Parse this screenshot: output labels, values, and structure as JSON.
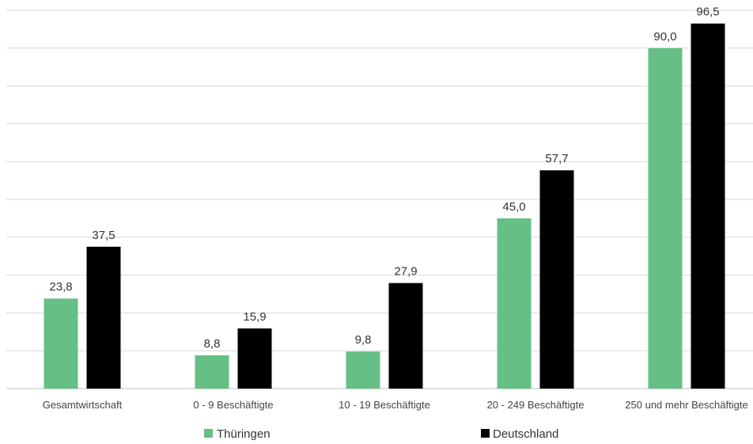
{
  "chart_data": {
    "type": "bar",
    "categories": [
      "Gesamtwirtschaft",
      "0 - 9 Beschäftigte",
      "10 - 19 Beschäftigte",
      "20 - 249 Beschäftigte",
      "250 und mehr Beschäftigte"
    ],
    "series": [
      {
        "name": "Thüringen",
        "color": "#66bf85",
        "values": [
          23.8,
          8.8,
          9.8,
          45.0,
          90.0
        ],
        "labels": [
          "23,8",
          "8,8",
          "9,8",
          "45,0",
          "90,0"
        ]
      },
      {
        "name": "Deutschland",
        "color": "#000000",
        "values": [
          37.5,
          15.9,
          27.9,
          57.7,
          96.5
        ],
        "labels": [
          "37,5",
          "15,9",
          "27,9",
          "57,7",
          "96,5"
        ]
      }
    ],
    "ylim": [
      0,
      100
    ],
    "gridlines": true,
    "legend_position": "bottom"
  }
}
